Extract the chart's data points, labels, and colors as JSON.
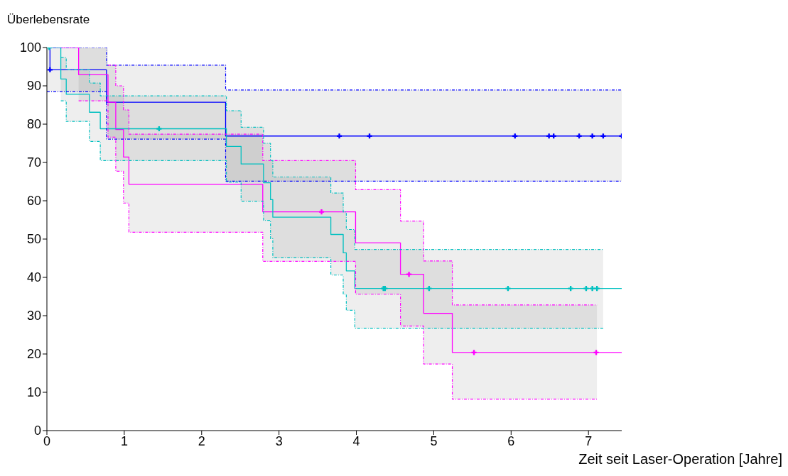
{
  "chart_data": {
    "type": "step",
    "ylabel": "Überlebensrate",
    "xlabel": "Zeit seit Laser-Operation [Jahre]",
    "xlim": [
      0,
      7.43
    ],
    "xticks": [
      0,
      1,
      2,
      3,
      4,
      5,
      6,
      7
    ],
    "ylim": [
      0,
      100
    ],
    "yticks": [
      0,
      10,
      20,
      30,
      40,
      50,
      60,
      70,
      80,
      90,
      100
    ],
    "grid": false,
    "legend": false,
    "series": [
      {
        "color": "#0000ff",
        "x": [
          0,
          0.04,
          0.77,
          2.31,
          7.43
        ],
        "values": [
          100,
          94.2,
          85.7,
          76.9,
          76.9
        ],
        "lower": [
          88.5,
          88.5,
          76.1,
          65.1,
          65.1
        ],
        "upper": [
          100,
          100,
          95.4,
          88.9,
          88.9
        ]
      },
      {
        "color": "#ff00ff",
        "x": [
          0,
          0.41,
          0.79,
          0.89,
          0.99,
          1.06,
          2.79,
          3.99,
          4.57,
          4.87,
          5.24,
          7.11,
          7.43
        ],
        "values": [
          100,
          92.9,
          85.7,
          78.6,
          71.4,
          64.3,
          57.1,
          49.0,
          40.8,
          30.6,
          20.4,
          20.4,
          20.4
        ],
        "lower": [
          100,
          86.1,
          76.6,
          67.7,
          59.4,
          51.8,
          44.2,
          35.6,
          27.3,
          17.4,
          8.2,
          8.2,
          null
        ],
        "upper": [
          100,
          100,
          95.4,
          90.0,
          83.7,
          77.4,
          70.5,
          62.9,
          54.7,
          44.3,
          32.8,
          32.8,
          null
        ]
      },
      {
        "color": "#00c0c0",
        "x": [
          0,
          0.18,
          0.25,
          0.55,
          0.69,
          2.32,
          2.51,
          2.8,
          2.89,
          2.92,
          3.67,
          3.83,
          3.87,
          3.98,
          7.19,
          7.43
        ],
        "values": [
          100,
          91.8,
          87.8,
          83.1,
          78.8,
          74.2,
          69.6,
          64.7,
          60.3,
          55.7,
          51.2,
          46.4,
          41.7,
          37.1,
          37.1,
          37.1
        ],
        "lower": [
          100,
          86.1,
          80.7,
          75.5,
          70.5,
          64.9,
          59.9,
          54.9,
          50.1,
          45.1,
          40.6,
          35.6,
          31.4,
          26.7,
          26.7,
          null
        ],
        "upper": [
          100,
          97.4,
          94.2,
          90.7,
          87.4,
          83.5,
          79.2,
          75.0,
          70.5,
          66.2,
          62.0,
          57.1,
          52.5,
          47.3,
          47.3,
          null
        ]
      },
      {
        "color": "#0000ff",
        "line_style": "dashed",
        "x": [
          0,
          0.77,
          2.31,
          7.43
        ],
        "values": [
          88.5,
          76.1,
          65.1,
          65.1
        ]
      },
      {
        "color": "#0000ff",
        "line_style": "dashed",
        "x": [
          0,
          0.77,
          2.31,
          7.43
        ],
        "values": [
          100,
          95.4,
          88.9,
          88.9
        ]
      },
      {
        "color": "#ff00ff",
        "line_style": "dashed",
        "x": [
          0.41,
          0.79,
          0.89,
          0.99,
          1.06,
          2.79,
          3.99,
          4.57,
          4.87,
          5.24,
          7.11
        ],
        "values": [
          86.1,
          76.6,
          67.7,
          59.4,
          51.8,
          44.2,
          35.6,
          27.3,
          17.4,
          8.2,
          8.2
        ]
      },
      {
        "color": "#ff00ff",
        "line_style": "dashed",
        "x": [
          0.79,
          0.89,
          0.99,
          1.06,
          2.79,
          3.99,
          4.57,
          4.87,
          5.24,
          7.11
        ],
        "values": [
          95.4,
          90.0,
          83.7,
          77.4,
          70.5,
          62.9,
          54.7,
          44.3,
          32.8,
          32.8
        ]
      },
      {
        "color": "#00c0c0",
        "line_style": "dashed",
        "x": [
          0.18,
          0.25,
          0.55,
          0.69,
          2.32,
          2.51,
          2.8,
          2.89,
          2.92,
          3.67,
          3.83,
          3.87,
          3.98,
          7.19
        ],
        "values": [
          86.1,
          80.7,
          75.5,
          70.5,
          64.9,
          59.9,
          54.9,
          50.1,
          45.1,
          40.6,
          35.6,
          31.4,
          26.7,
          26.7
        ]
      },
      {
        "color": "#00c0c0",
        "line_style": "dashed",
        "x": [
          0.18,
          0.25,
          0.55,
          0.69,
          2.32,
          2.51,
          2.8,
          2.89,
          2.92,
          3.67,
          3.83,
          3.87,
          3.98,
          7.19
        ],
        "values": [
          97.4,
          94.2,
          90.7,
          87.4,
          83.5,
          79.2,
          75.0,
          70.5,
          66.2,
          62.0,
          57.1,
          52.5,
          47.3,
          47.3
        ]
      },
      {
        "type": "scatter",
        "marker": "cross",
        "color": "#0000ff",
        "x": [
          0.04,
          3.78,
          4.17,
          6.05,
          6.49,
          6.55,
          6.88,
          7.05,
          7.19,
          7.43
        ],
        "values": [
          94.2,
          76.9,
          76.9,
          76.9,
          76.9,
          76.9,
          76.9,
          76.9,
          76.9,
          76.9
        ]
      },
      {
        "type": "scatter",
        "marker": "cross",
        "color": "#ff00ff",
        "x": [
          3.55,
          4.68,
          5.52,
          7.1
        ],
        "values": [
          57.1,
          40.8,
          20.4,
          20.4
        ]
      },
      {
        "type": "scatter",
        "marker": "cross",
        "color": "#00c0c0",
        "x": [
          0.03,
          1.45,
          4.35,
          4.37,
          4.94,
          5.96,
          6.77,
          6.97,
          7.05,
          7.11
        ],
        "values": [
          100,
          78.8,
          37.1,
          37.1,
          37.1,
          37.1,
          37.1,
          37.1,
          37.1,
          37.1
        ]
      }
    ]
  }
}
